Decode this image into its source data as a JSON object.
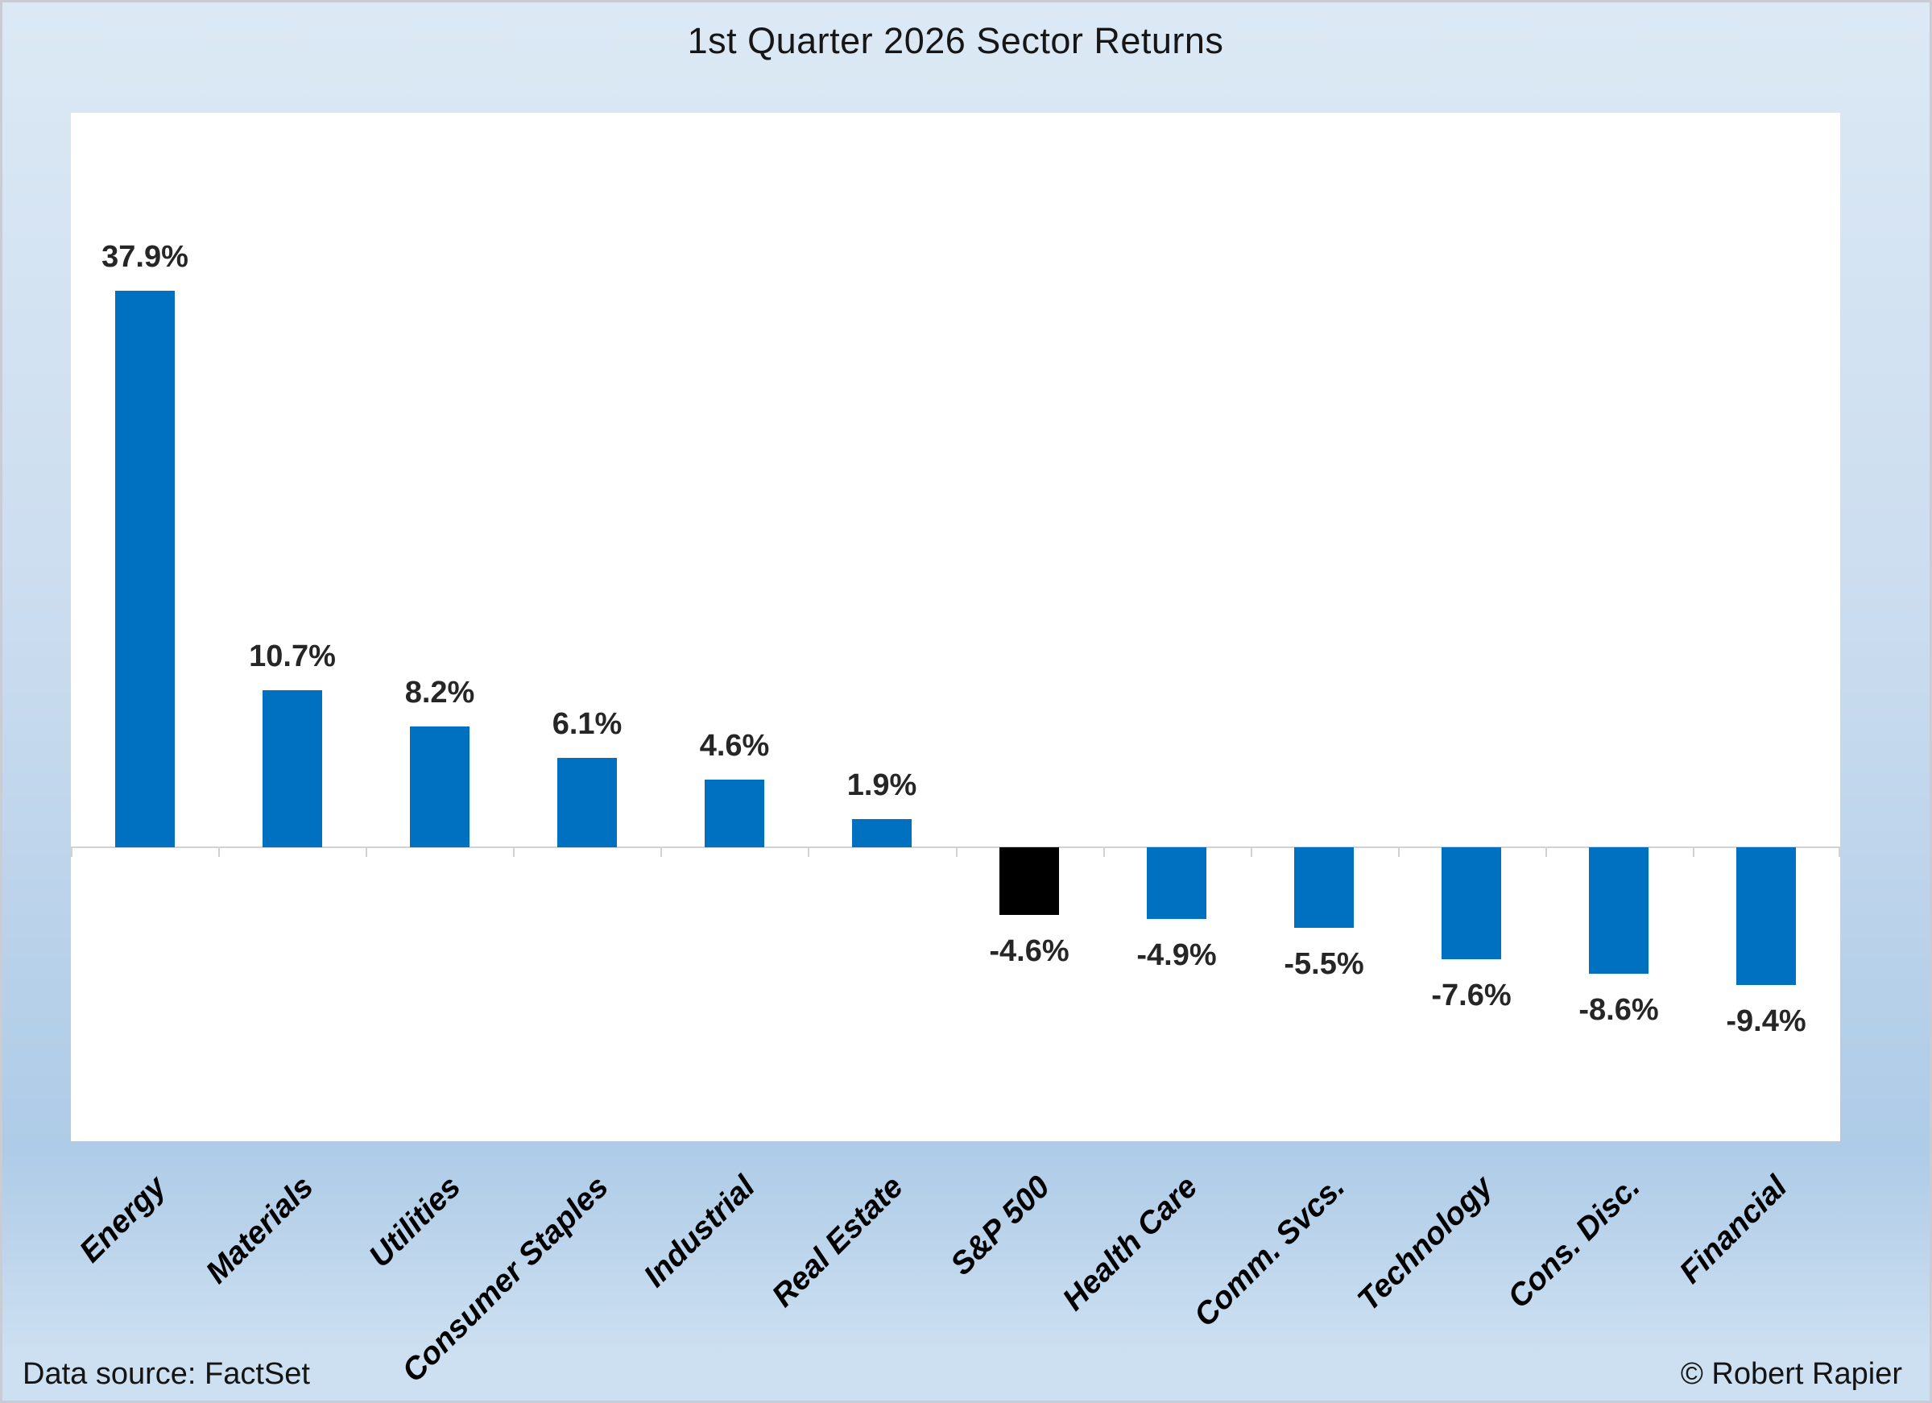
{
  "title": "1st Quarter 2026 Sector Returns",
  "footer": {
    "source": "Data source: FactSet",
    "credit": "© Robert Rapier"
  },
  "colors": {
    "bar": "#0070c0",
    "highlight_bar": "#000000",
    "axis_line": "#d2d2d2",
    "data_label": "#262626",
    "category_label": "#000000",
    "title_text": "#161616",
    "plot_background": "#ffffff",
    "background_top": "#dce9f5",
    "background_mid": "#cadcef",
    "background_deep": "#aecbe7",
    "background_bottom": "#cde0f1"
  },
  "chart_data": {
    "type": "bar",
    "title": "1st Quarter 2026 Sector Returns",
    "categories": [
      "Energy",
      "Materials",
      "Utilities",
      "Consumer Staples",
      "Industrial",
      "Real Estate",
      "S&P 500",
      "Health Care",
      "Comm. Svcs.",
      "Technology",
      "Cons. Disc.",
      "Financial"
    ],
    "values": [
      37.9,
      10.7,
      8.2,
      6.1,
      4.6,
      1.9,
      -4.6,
      -4.9,
      -5.5,
      -7.6,
      -8.6,
      -9.4
    ],
    "data_labels": [
      "37.9%",
      "10.7%",
      "8.2%",
      "6.1%",
      "4.6%",
      "1.9%",
      "-4.6%",
      "-4.9%",
      "-5.5%",
      "-7.6%",
      "-8.6%",
      "-9.4%"
    ],
    "highlight_category": "S&P 500",
    "highlight_index": 6,
    "xlabel": "",
    "ylabel": "",
    "ylim": [
      -20,
      50
    ],
    "grid": false,
    "legend": false,
    "x_tick_rotation_deg": 45,
    "data_label_decimals": 1
  }
}
